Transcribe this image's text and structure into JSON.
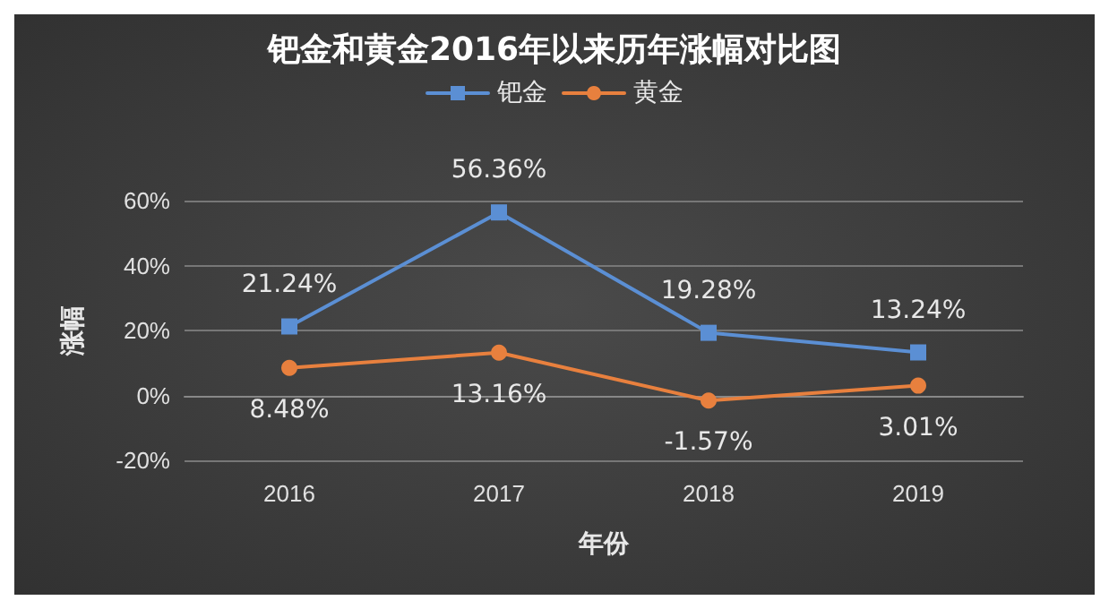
{
  "chart_data": {
    "type": "line",
    "title": "钯金和黄金2016年以来历年涨幅对比图",
    "xlabel": "年份",
    "ylabel": "涨幅",
    "categories": [
      "2016",
      "2017",
      "2018",
      "2019"
    ],
    "series": [
      {
        "name": "钯金",
        "color": "#5b8fd4",
        "marker": "square",
        "values": [
          21.24,
          56.36,
          19.28,
          13.24
        ],
        "value_labels": [
          "21.24%",
          "56.36%",
          "19.28%",
          "13.24%"
        ]
      },
      {
        "name": "黄金",
        "color": "#e8803e",
        "marker": "circle",
        "values": [
          8.48,
          13.16,
          -1.57,
          3.01
        ],
        "value_labels": [
          "8.48%",
          "13.16%",
          "-1.57%",
          "3.01%"
        ]
      }
    ],
    "ylim": [
      -20,
      60
    ],
    "yticks": [
      {
        "value": -20,
        "label": "-20%"
      },
      {
        "value": 0,
        "label": "0%"
      },
      {
        "value": 20,
        "label": "20%"
      },
      {
        "value": 40,
        "label": "40%"
      },
      {
        "value": 60,
        "label": "60%"
      }
    ],
    "grid": "y",
    "legend": "top",
    "line_style": "solid"
  }
}
